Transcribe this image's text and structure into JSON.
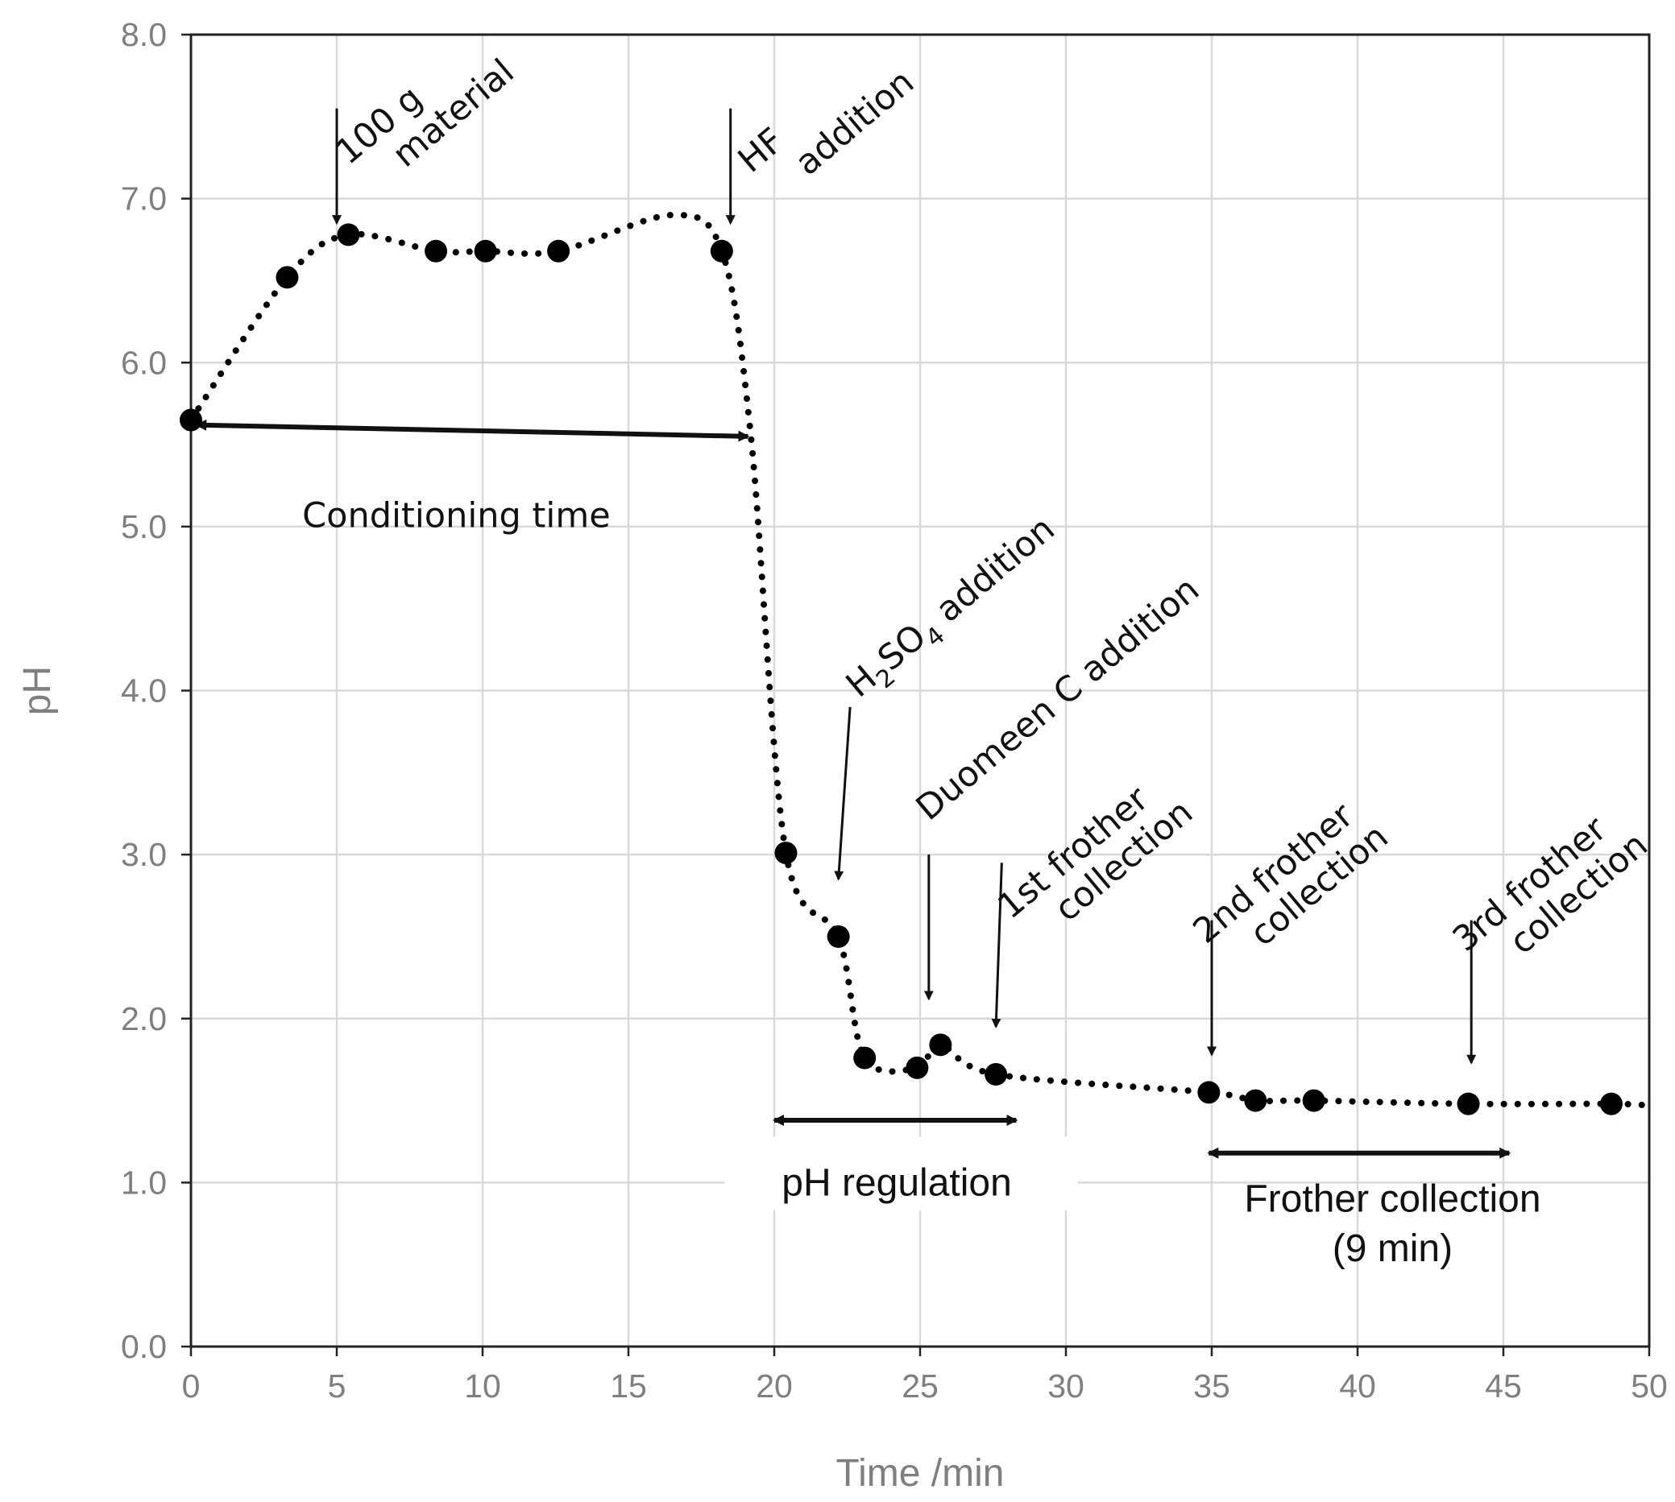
{
  "chart_data": {
    "type": "line",
    "title": "",
    "xlabel": "Time /min",
    "ylabel": "pH",
    "xlim": [
      0,
      50
    ],
    "ylim": [
      0,
      8
    ],
    "grid": true,
    "x_ticks": [
      "0",
      "5",
      "10",
      "15",
      "20",
      "25",
      "30",
      "35",
      "40",
      "45",
      "50"
    ],
    "y_ticks": [
      "0.0",
      "1.0",
      "2.0",
      "3.0",
      "4.0",
      "5.0",
      "6.0",
      "7.0",
      "8.0"
    ],
    "series": [
      {
        "name": "pH",
        "style": "dotted line with markers",
        "points": [
          {
            "x": 0,
            "y": 5.65
          },
          {
            "x": 3.3,
            "y": 6.52
          },
          {
            "x": 5.4,
            "y": 6.78
          },
          {
            "x": 8.4,
            "y": 6.68
          },
          {
            "x": 10.1,
            "y": 6.68
          },
          {
            "x": 12.6,
            "y": 6.68
          },
          {
            "x": 18.2,
            "y": 6.68
          },
          {
            "x": 20.4,
            "y": 3.01
          },
          {
            "x": 22.2,
            "y": 2.5
          },
          {
            "x": 23.1,
            "y": 1.76
          },
          {
            "x": 24.9,
            "y": 1.7
          },
          {
            "x": 25.7,
            "y": 1.84
          },
          {
            "x": 27.6,
            "y": 1.66
          },
          {
            "x": 34.9,
            "y": 1.55
          },
          {
            "x": 36.5,
            "y": 1.5
          },
          {
            "x": 38.5,
            "y": 1.5
          },
          {
            "x": 43.8,
            "y": 1.48
          },
          {
            "x": 48.7,
            "y": 1.48
          }
        ],
        "curve_guides": [
          {
            "x": 16.5,
            "y": 6.9
          },
          {
            "x": 19.2,
            "y": 5.55
          },
          {
            "x": 50,
            "y": 1.47
          }
        ]
      }
    ],
    "event_arrows": [
      {
        "id": "material",
        "lines": [
          "100 g",
          "material"
        ],
        "x": 5.0,
        "y_from": 7.55,
        "y_to": 6.85
      },
      {
        "id": "hf",
        "lines": [
          "HF",
          "addition"
        ],
        "x": 18.5,
        "y_from": 7.55,
        "y_to": 6.85
      },
      {
        "id": "h2so4",
        "lines": [
          "H2SO4 addition"
        ],
        "x_from": 22.6,
        "y_from": 3.9,
        "x_to": 22.2,
        "y_to": 2.85
      },
      {
        "id": "duomeen",
        "lines": [
          "Duomeen C addition"
        ],
        "x": 25.3,
        "y_from": 3.0,
        "y_to": 2.12
      },
      {
        "id": "frother1",
        "lines": [
          "1st frother",
          "collection"
        ],
        "x_from": 27.8,
        "y_from": 2.95,
        "x_to": 27.6,
        "y_to": 1.95
      },
      {
        "id": "frother2",
        "lines": [
          "2nd frother",
          "collection"
        ],
        "x": 35.0,
        "y_from": 2.6,
        "y_to": 1.78
      },
      {
        "id": "frother3",
        "lines": [
          "3rd frother",
          "collection"
        ],
        "x": 43.9,
        "y_from": 2.6,
        "y_to": 1.73
      }
    ],
    "h2so4_label": {
      "main": "H",
      "sub1": "2",
      "mid": "SO",
      "sub2": "4",
      "tail": " addition"
    },
    "spans": [
      {
        "id": "conditioning",
        "label": "Conditioning time",
        "x_from": 0.2,
        "x_to": 19.1,
        "y_from": 5.62,
        "y_to": 5.55
      },
      {
        "id": "ph-regulation",
        "label": "pH regulation",
        "x_from": 20.0,
        "x_to": 28.3,
        "y": 1.38
      },
      {
        "id": "frother-collection",
        "label": "Frother collection",
        "sublabel": "(9 min)",
        "x_from": 34.9,
        "x_to": 45.2,
        "y": 1.18
      }
    ]
  }
}
